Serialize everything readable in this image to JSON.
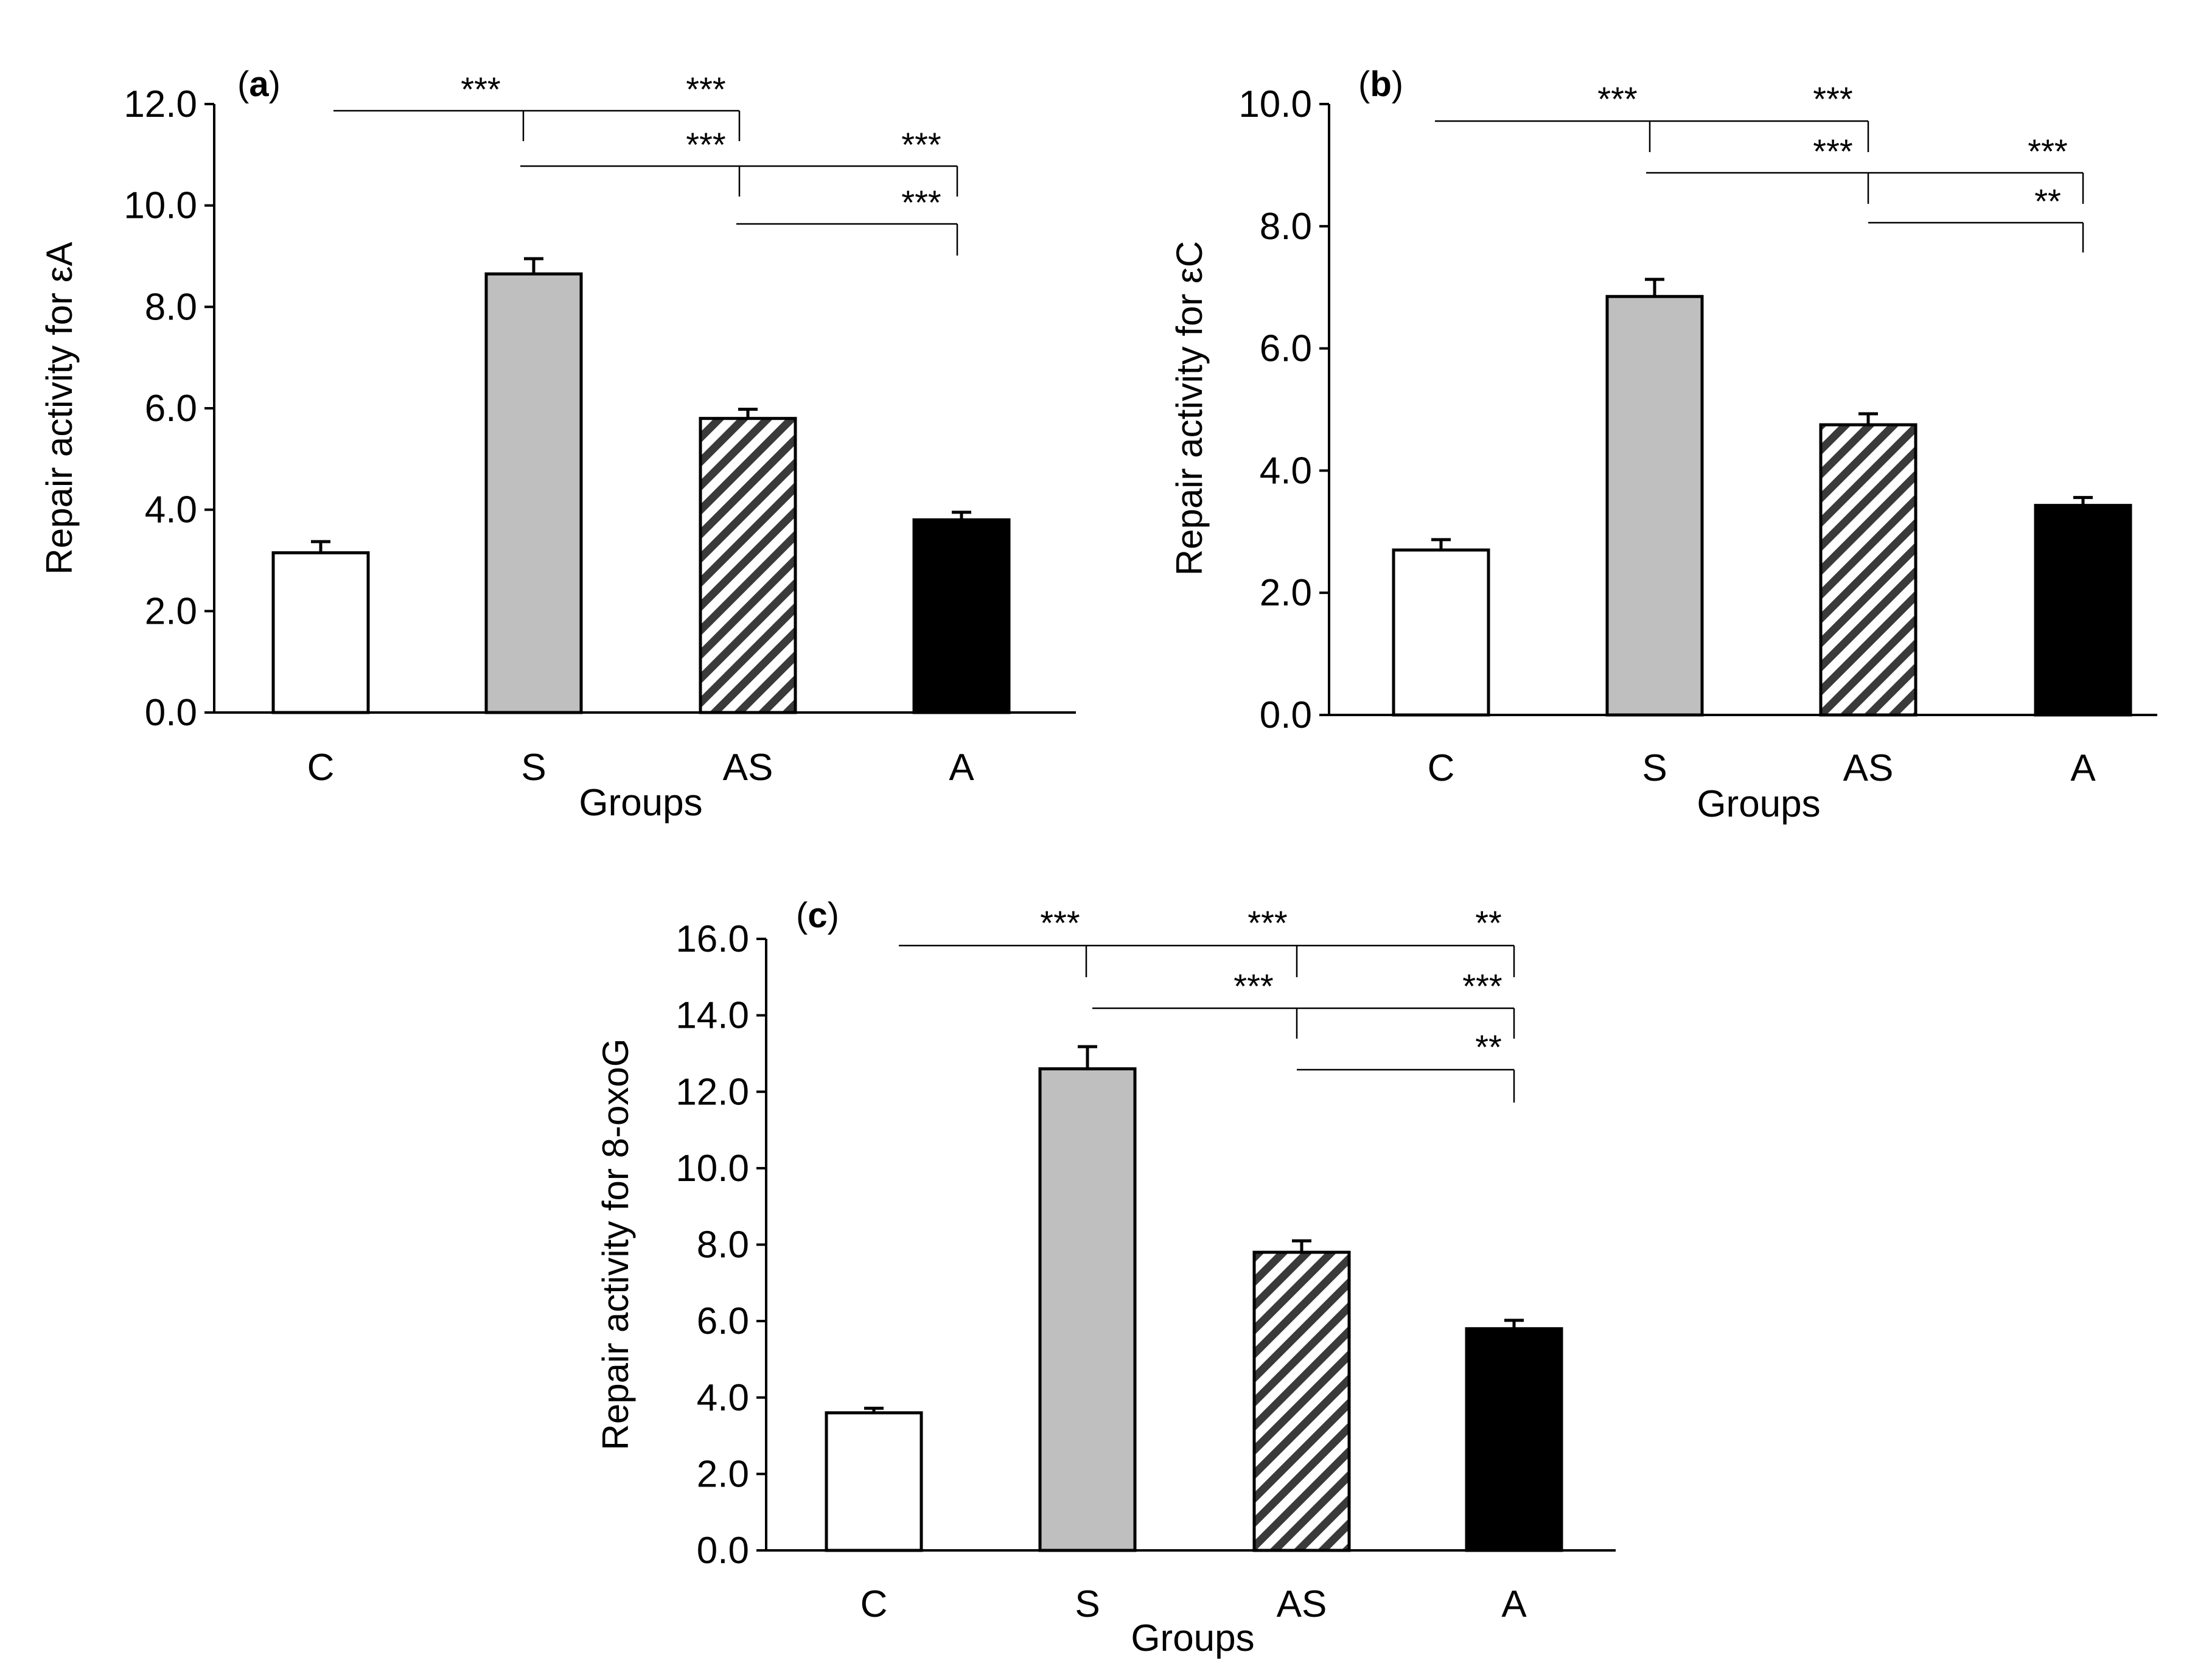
{
  "figure": {
    "x_axis_label": "Groups",
    "colors": {
      "C": "#ffffff",
      "S": "#bfbfbf",
      "AS": "hatch",
      "A": "#000000"
    }
  },
  "chart_data": [
    {
      "type": "bar",
      "panel": "a",
      "categories": [
        "C",
        "S",
        "AS",
        "A"
      ],
      "values": [
        3.15,
        8.65,
        5.8,
        3.8
      ],
      "errors": [
        0.22,
        0.3,
        0.18,
        0.15
      ],
      "ylabel": "Repair activity for εA",
      "xlabel": "Groups",
      "ylim": [
        0,
        12
      ],
      "yticks": [
        "0.0",
        "2.0",
        "4.0",
        "6.0",
        "8.0",
        "10.0",
        "12.0"
      ],
      "significance": [
        {
          "from": "C",
          "to": "S",
          "label": "***"
        },
        {
          "from": "S",
          "to": "AS",
          "label": "***"
        },
        {
          "from": "S",
          "to": "AS",
          "label": "***"
        },
        {
          "from": "AS",
          "to": "A",
          "label": "***"
        },
        {
          "from": "AS",
          "to": "A",
          "label": "***"
        }
      ]
    },
    {
      "type": "bar",
      "panel": "b",
      "categories": [
        "C",
        "S",
        "AS",
        "A"
      ],
      "values": [
        2.7,
        6.85,
        4.75,
        3.43
      ],
      "errors": [
        0.17,
        0.28,
        0.18,
        0.13
      ],
      "ylabel": "Repair activity for εC",
      "xlabel": "Groups",
      "ylim": [
        0,
        10
      ],
      "yticks": [
        "0.0",
        "2.0",
        "4.0",
        "6.0",
        "8.0",
        "10.0"
      ],
      "significance": [
        {
          "from": "C",
          "to": "S",
          "label": "***"
        },
        {
          "from": "S",
          "to": "AS",
          "label": "***"
        },
        {
          "from": "S",
          "to": "AS",
          "label": "***"
        },
        {
          "from": "AS",
          "to": "A",
          "label": "***"
        },
        {
          "from": "AS",
          "to": "A",
          "label": "**"
        }
      ]
    },
    {
      "type": "bar",
      "panel": "c",
      "categories": [
        "C",
        "S",
        "AS",
        "A"
      ],
      "values": [
        3.6,
        12.6,
        7.8,
        5.8
      ],
      "errors": [
        0.12,
        0.58,
        0.3,
        0.22
      ],
      "ylabel": "Repair activity for 8-oxoG",
      "xlabel": "Groups",
      "ylim": [
        0,
        16
      ],
      "yticks": [
        "0.0",
        "2.0",
        "4.0",
        "6.0",
        "8.0",
        "10.0",
        "12.0",
        "14.0",
        "16.0"
      ],
      "significance": [
        {
          "from": "C",
          "to": "S",
          "label": "***"
        },
        {
          "from": "S",
          "to": "AS",
          "label": "***"
        },
        {
          "from": "AS",
          "to": "A",
          "label": "**"
        },
        {
          "from": "S",
          "to": "AS",
          "label": "***"
        },
        {
          "from": "AS",
          "to": "A",
          "label": "***"
        },
        {
          "from": "AS",
          "to": "A",
          "label": "**"
        }
      ]
    }
  ]
}
